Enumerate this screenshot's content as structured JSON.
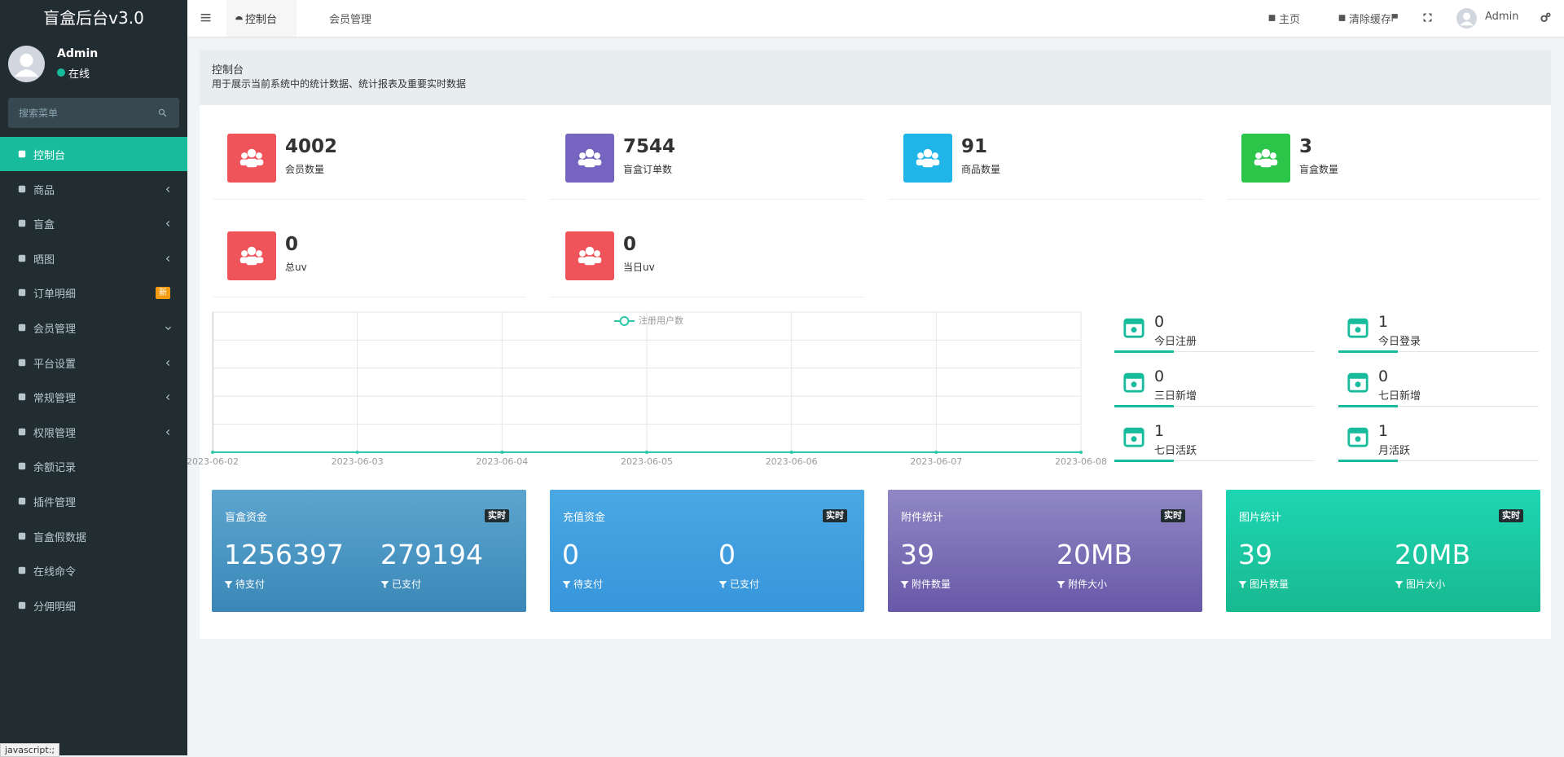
{
  "sidebar": {
    "brand": "盲盒后台v3.0",
    "user": {
      "name": "Admin",
      "status": "在线"
    },
    "search_placeholder": "搜索菜单",
    "menu": [
      {
        "label": "控制台",
        "active": true
      },
      {
        "label": "商品",
        "submenu": "closed"
      },
      {
        "label": "盲盒",
        "submenu": "closed"
      },
      {
        "label": "晒图",
        "submenu": "closed"
      },
      {
        "label": "订单明细",
        "badge": "新"
      },
      {
        "label": "会员管理",
        "submenu": "open"
      },
      {
        "label": "平台设置",
        "submenu": "closed"
      },
      {
        "label": "常规管理",
        "submenu": "closed"
      },
      {
        "label": "权限管理",
        "submenu": "closed"
      },
      {
        "label": "余额记录"
      },
      {
        "label": "插件管理"
      },
      {
        "label": "盲盒假数据"
      },
      {
        "label": "在线命令"
      },
      {
        "label": "分佣明细"
      }
    ]
  },
  "topbar": {
    "tabs": [
      "控制台",
      "会员管理"
    ],
    "actions": [
      "主页",
      "清除缓存"
    ],
    "user": "Admin"
  },
  "page_header": {
    "title": "控制台",
    "subtitle": "用于展示当前系统中的统计数据、统计报表及重要实时数据"
  },
  "stats": [
    {
      "value": 4002,
      "label": "会员数量",
      "color": "#f0545b"
    },
    {
      "value": 7544,
      "label": "盲盒订单数",
      "color": "#7565c0"
    },
    {
      "value": 91,
      "label": "商品数量",
      "color": "#1fb5e8"
    },
    {
      "value": 3,
      "label": "盲盒数量",
      "color": "#2bc54a"
    },
    {
      "value": 0,
      "label": "总uv",
      "color": "#f0545b"
    },
    {
      "value": 0,
      "label": "当日uv",
      "color": "#f0545b"
    }
  ],
  "chart_data": {
    "type": "line",
    "x": [
      "2023-06-02",
      "2023-06-03",
      "2023-06-04",
      "2023-06-05",
      "2023-06-06",
      "2023-06-07",
      "2023-06-08"
    ],
    "series": [
      {
        "name": "注册用户数",
        "color": "#2ec7a9",
        "values": [
          0,
          0,
          0,
          0,
          0,
          0,
          0
        ]
      }
    ],
    "ylim": [
      0,
      1
    ],
    "grid": true
  },
  "mini_stats": [
    {
      "value": 0,
      "label": "今日注册"
    },
    {
      "value": 1,
      "label": "今日登录"
    },
    {
      "value": 0,
      "label": "三日新增"
    },
    {
      "value": 0,
      "label": "七日新增"
    },
    {
      "value": 1,
      "label": "七日活跃"
    },
    {
      "value": 1,
      "label": "月活跃"
    }
  ],
  "cards": [
    {
      "title": "盲盒资金",
      "badge": "实时",
      "items": [
        {
          "value": 1256397,
          "label": "待支付"
        },
        {
          "value": 279194,
          "label": "已支付"
        }
      ]
    },
    {
      "title": "充值资金",
      "badge": "实时",
      "items": [
        {
          "value": 0,
          "label": "待支付"
        },
        {
          "value": 0,
          "label": "已支付"
        }
      ]
    },
    {
      "title": "附件统计",
      "badge": "实时",
      "items": [
        {
          "value": 39,
          "label": "附件数量"
        },
        {
          "value": "20MB",
          "label": "附件大小"
        }
      ]
    },
    {
      "title": "图片统计",
      "badge": "实时",
      "items": [
        {
          "value": 39,
          "label": "图片数量"
        },
        {
          "value": "20MB",
          "label": "图片大小"
        }
      ]
    }
  ],
  "status_bar": "javascript:;"
}
